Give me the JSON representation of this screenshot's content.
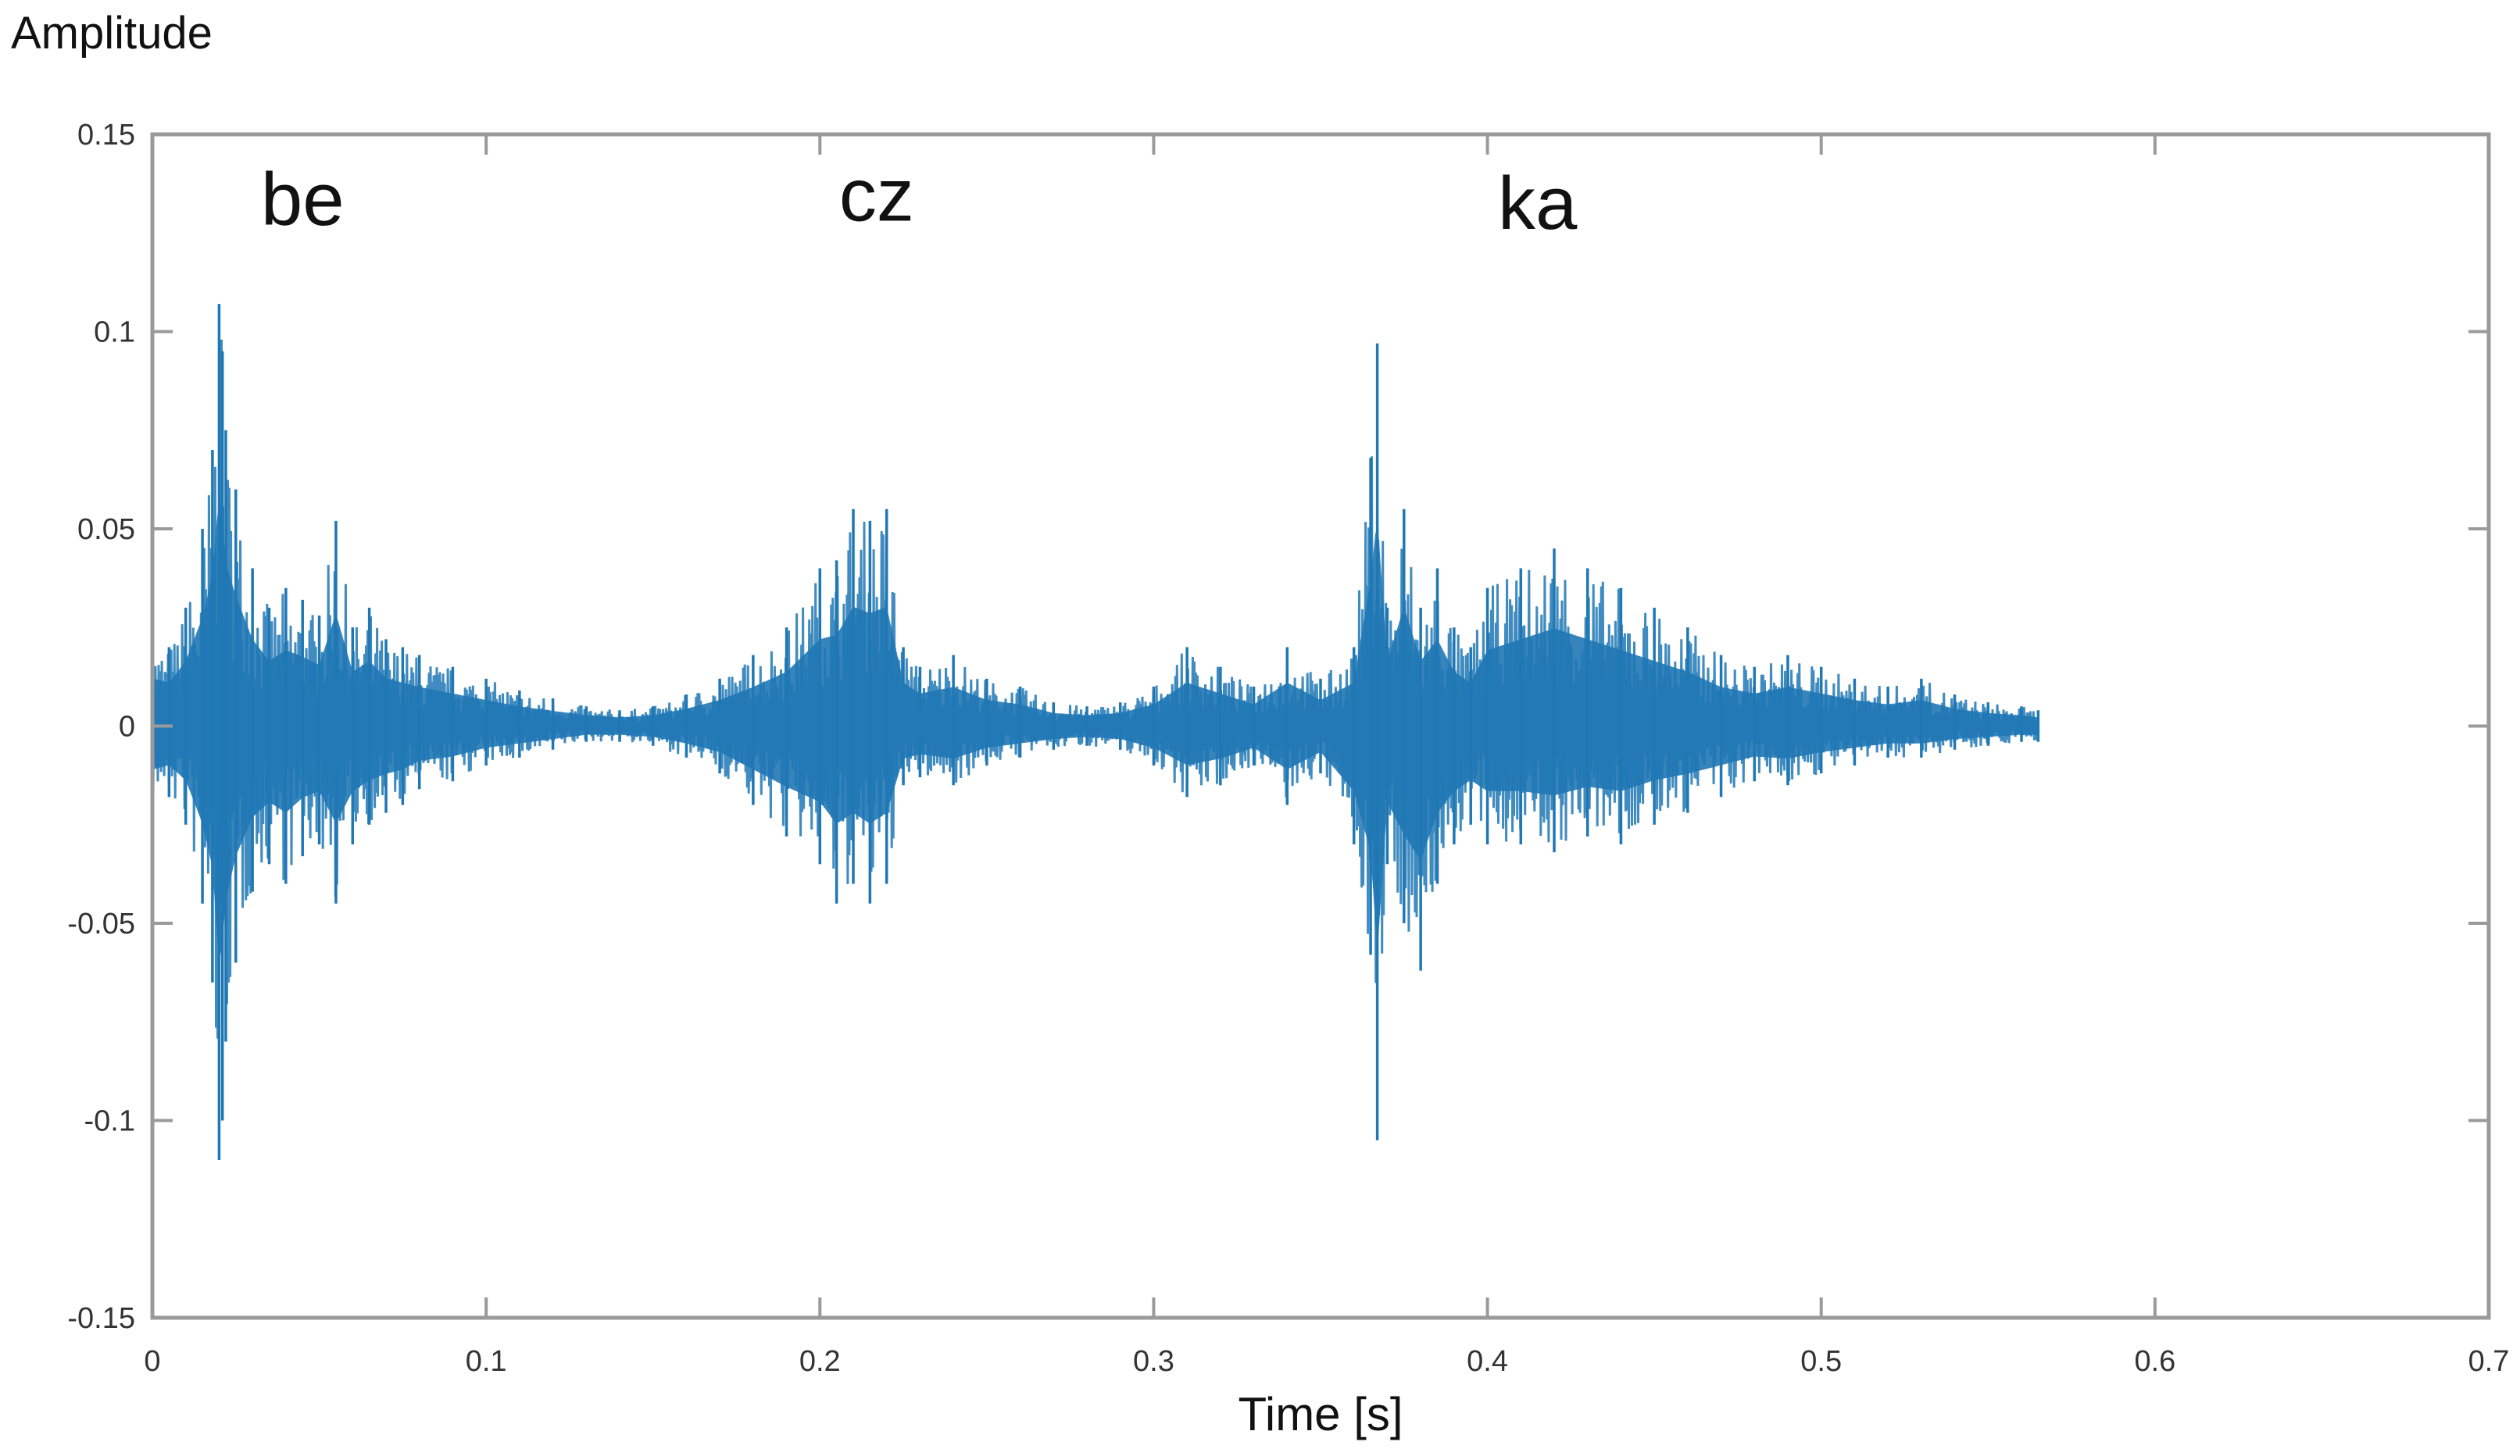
{
  "chart_data": {
    "type": "line",
    "title": "",
    "ylabel": "Amplitude",
    "xlabel": "Time [s]",
    "xlim": [
      0,
      0.7
    ],
    "ylim": [
      -0.15,
      0.15
    ],
    "xticks": [
      0,
      0.1,
      0.2,
      0.3,
      0.4,
      0.5,
      0.6,
      0.7
    ],
    "xtick_labels": [
      "0",
      "0.1",
      "0.2",
      "0.3",
      "0.4",
      "0.5",
      "0.6",
      "0.7"
    ],
    "yticks": [
      0.15,
      0.1,
      0.05,
      0,
      -0.05,
      -0.1,
      -0.15
    ],
    "ytick_labels": [
      "0.15",
      "0.1",
      "0.05",
      "0",
      "-0.05",
      "-0.1",
      "-0.15"
    ],
    "grid": false,
    "line_color": "#1f77b4",
    "annotations": [
      {
        "text": "be",
        "x": 0.045,
        "y": 0.135
      },
      {
        "text": "cz",
        "x": 0.217,
        "y": 0.136
      },
      {
        "text": "ka",
        "x": 0.415,
        "y": 0.134
      }
    ],
    "series": [
      {
        "x": [
          0,
          0.005,
          0.01,
          0.015,
          0.018,
          0.02,
          0.021,
          0.022,
          0.025,
          0.03,
          0.035,
          0.04,
          0.045,
          0.05,
          0.055,
          0.06,
          0.065,
          0.07,
          0.075,
          0.08,
          0.09,
          0.1,
          0.11,
          0.12,
          0.13,
          0.14,
          0.15,
          0.16,
          0.17,
          0.18,
          0.19,
          0.2,
          0.205,
          0.21,
          0.215,
          0.22,
          0.225,
          0.23,
          0.24,
          0.25,
          0.26,
          0.27,
          0.28,
          0.29,
          0.3,
          0.31,
          0.32,
          0.33,
          0.34,
          0.35,
          0.36,
          0.365,
          0.367,
          0.37,
          0.375,
          0.38,
          0.385,
          0.39,
          0.395,
          0.4,
          0.41,
          0.42,
          0.43,
          0.44,
          0.45,
          0.46,
          0.47,
          0.48,
          0.49,
          0.5,
          0.51,
          0.52,
          0.53,
          0.54,
          0.55,
          0.56,
          0.565
        ],
        "upper": [
          0.022,
          0.02,
          0.03,
          0.05,
          0.07,
          0.107,
          0.095,
          0.075,
          0.06,
          0.04,
          0.03,
          0.035,
          0.032,
          0.028,
          0.052,
          0.025,
          0.03,
          0.022,
          0.02,
          0.018,
          0.015,
          0.012,
          0.009,
          0.007,
          0.005,
          0.004,
          0.005,
          0.008,
          0.012,
          0.018,
          0.025,
          0.04,
          0.042,
          0.055,
          0.052,
          0.055,
          0.02,
          0.015,
          0.018,
          0.012,
          0.01,
          0.006,
          0.005,
          0.006,
          0.01,
          0.02,
          0.015,
          0.01,
          0.02,
          0.012,
          0.02,
          0.068,
          0.097,
          0.03,
          0.055,
          0.03,
          0.04,
          0.025,
          0.02,
          0.035,
          0.04,
          0.045,
          0.04,
          0.035,
          0.03,
          0.025,
          0.018,
          0.015,
          0.018,
          0.015,
          0.012,
          0.01,
          0.012,
          0.008,
          0.006,
          0.005,
          0.004
        ],
        "lower": [
          -0.02,
          -0.018,
          -0.025,
          -0.045,
          -0.065,
          -0.11,
          -0.1,
          -0.08,
          -0.06,
          -0.042,
          -0.035,
          -0.04,
          -0.033,
          -0.03,
          -0.045,
          -0.03,
          -0.025,
          -0.022,
          -0.02,
          -0.016,
          -0.014,
          -0.01,
          -0.008,
          -0.006,
          -0.004,
          -0.004,
          -0.005,
          -0.008,
          -0.012,
          -0.02,
          -0.028,
          -0.035,
          -0.045,
          -0.04,
          -0.045,
          -0.04,
          -0.015,
          -0.013,
          -0.015,
          -0.01,
          -0.008,
          -0.006,
          -0.005,
          -0.006,
          -0.01,
          -0.018,
          -0.015,
          -0.01,
          -0.02,
          -0.012,
          -0.03,
          -0.058,
          -0.105,
          -0.035,
          -0.05,
          -0.062,
          -0.04,
          -0.03,
          -0.025,
          -0.03,
          -0.03,
          -0.032,
          -0.028,
          -0.03,
          -0.025,
          -0.022,
          -0.018,
          -0.014,
          -0.015,
          -0.012,
          -0.01,
          -0.008,
          -0.008,
          -0.006,
          -0.005,
          -0.004,
          -0.004
        ]
      }
    ]
  }
}
